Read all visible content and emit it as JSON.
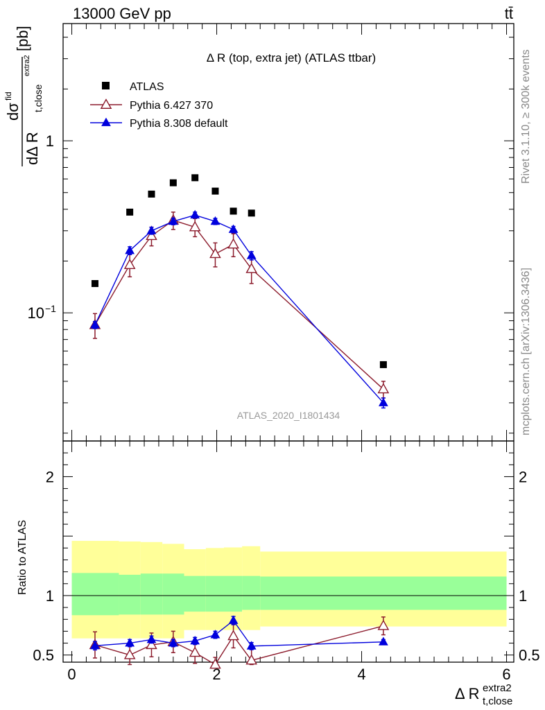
{
  "header": {
    "beam_label": "13000 GeV pp",
    "process_label": "tt̄"
  },
  "side_labels": {
    "rivet": "Rivet 3.1.10, ≥ 300k events",
    "mcplots": "mcplots.cern.ch [arXiv:1306.3436]"
  },
  "watermark": "ATLAS_2020_I1801434",
  "chart_data": {
    "type": "scatter",
    "title": "Δ R (top, extra jet) (ATLAS ttbar)",
    "ylabel_parts": {
      "frac": "dσ",
      "fid": "fid",
      "denom": "dΔ R",
      "sub": "t,close",
      "sup": "extra2",
      "unit": "[pb]"
    },
    "xlabel_parts": {
      "main": "Δ R",
      "sup": "extra2",
      "sub": "t,close"
    },
    "ratio_ylabel": "Ratio to ATLAS",
    "xlim": [
      -0.12,
      6.1
    ],
    "ylim_main": [
      0.018,
      4.8
    ],
    "ylim_ratio": [
      0.44,
      2.3
    ],
    "main_yticks": [
      {
        "v": 1,
        "label": "1"
      },
      {
        "v": 0.1,
        "label": "10",
        "exp": "−1"
      }
    ],
    "ratio_yticks": [
      {
        "v": 0.5,
        "label": "0.5"
      },
      {
        "v": 1,
        "label": "1"
      },
      {
        "v": 2,
        "label": "2"
      }
    ],
    "xticks": [
      {
        "v": 0,
        "label": "0"
      },
      {
        "v": 2,
        "label": "2"
      },
      {
        "v": 4,
        "label": "4"
      },
      {
        "v": 6,
        "label": "6"
      }
    ],
    "legend": {
      "position": "top-left",
      "entries": [
        "ATLAS",
        "Pythia 6.427 370",
        "Pythia 8.308 default"
      ]
    },
    "colors": {
      "data": "#000000",
      "pythia6": "#8b1a2b",
      "pythia8": "#0000dd",
      "band_inner": "#99ff99",
      "band_outer": "#ffff99"
    },
    "bins": [
      [
        0.0,
        0.65
      ],
      [
        0.65,
        0.95
      ],
      [
        0.95,
        1.25
      ],
      [
        1.25,
        1.55
      ],
      [
        1.55,
        1.85
      ],
      [
        1.85,
        2.1
      ],
      [
        2.1,
        2.35
      ],
      [
        2.35,
        2.6
      ],
      [
        2.6,
        6.0
      ]
    ],
    "x": [
      0.32,
      0.8,
      1.1,
      1.4,
      1.7,
      1.98,
      2.23,
      2.48,
      4.3
    ],
    "series": [
      {
        "name": "ATLAS",
        "values": [
          0.148,
          0.385,
          0.49,
          0.57,
          0.61,
          0.51,
          0.39,
          0.38,
          0.05
        ]
      },
      {
        "name": "Pythia 6.427 370",
        "values": [
          0.085,
          0.19,
          0.28,
          0.345,
          0.315,
          0.22,
          0.25,
          0.18,
          0.036
        ],
        "err": [
          0.014,
          0.028,
          0.035,
          0.04,
          0.038,
          0.035,
          0.038,
          0.032,
          0.004
        ]
      },
      {
        "name": "Pythia 8.308 default",
        "values": [
          0.085,
          0.23,
          0.3,
          0.34,
          0.37,
          0.34,
          0.305,
          0.215,
          0.03
        ],
        "err": [
          0.004,
          0.012,
          0.014,
          0.015,
          0.015,
          0.014,
          0.013,
          0.012,
          0.002
        ]
      }
    ],
    "ratio_series": [
      {
        "name": "Pythia 6.427 370",
        "values": [
          0.585,
          0.5,
          0.585,
          0.61,
          0.52,
          0.38,
          0.66,
          0.455,
          0.745
        ],
        "err": [
          0.11,
          0.1,
          0.1,
          0.09,
          0.09,
          0.1,
          0.1,
          0.1,
          0.075
        ]
      },
      {
        "name": "Pythia 8.308 default",
        "values": [
          0.578,
          0.6,
          0.63,
          0.6,
          0.618,
          0.67,
          0.79,
          0.575,
          0.61
        ],
        "err": [
          0.035,
          0.03,
          0.03,
          0.03,
          0.03,
          0.03,
          0.035,
          0.03,
          0.02
        ]
      }
    ],
    "band_inner": [
      [
        0.835,
        1.19
      ],
      [
        0.84,
        1.175
      ],
      [
        0.84,
        1.185
      ],
      [
        0.84,
        1.185
      ],
      [
        0.865,
        1.165
      ],
      [
        0.865,
        1.165
      ],
      [
        0.865,
        1.165
      ],
      [
        0.88,
        1.165
      ],
      [
        0.88,
        1.16
      ]
    ],
    "band_outer": [
      [
        0.64,
        1.46
      ],
      [
        0.64,
        1.455
      ],
      [
        0.64,
        1.45
      ],
      [
        0.64,
        1.435
      ],
      [
        0.71,
        1.39
      ],
      [
        0.71,
        1.4
      ],
      [
        0.71,
        1.405
      ],
      [
        0.71,
        1.415
      ],
      [
        0.74,
        1.37
      ]
    ]
  }
}
